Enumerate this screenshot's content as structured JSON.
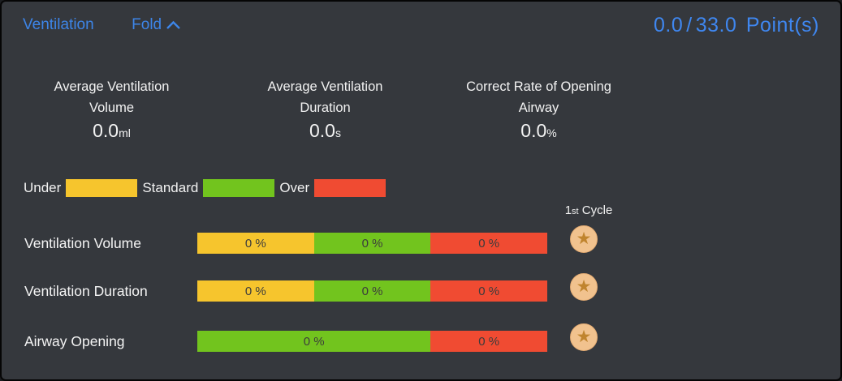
{
  "panel": {
    "title": "Ventilation",
    "fold_label": "Fold",
    "score": {
      "current": "0.0",
      "separator": "/",
      "total": "33.0",
      "unit": "Point(s)"
    }
  },
  "stats": [
    {
      "label_line1": "Average Ventilation",
      "label_line2": "Volume",
      "value": "0.0",
      "unit": "ml"
    },
    {
      "label_line1": "Average Ventilation",
      "label_line2": "Duration",
      "value": "0.0",
      "unit": "s"
    },
    {
      "label_line1": "Correct Rate of Opening",
      "label_line2": "Airway",
      "value": "0.0",
      "unit": "%"
    }
  ],
  "legend": [
    {
      "label": "Under",
      "key": "under",
      "color": "#f6c52d"
    },
    {
      "label": "Standard",
      "key": "standard",
      "color": "#72c41e"
    },
    {
      "label": "Over",
      "key": "over",
      "color": "#f04b32"
    }
  ],
  "cycle_header": {
    "number": "1",
    "ordinal": "st",
    "word": "Cycle"
  },
  "rows": [
    {
      "label": "Ventilation Volume",
      "segments": [
        {
          "category": "under",
          "value": "0 %",
          "weight": 1
        },
        {
          "category": "standard",
          "value": "0 %",
          "weight": 1
        },
        {
          "category": "over",
          "value": "0 %",
          "weight": 1
        }
      ],
      "cycle_rating": "star"
    },
    {
      "label": "Ventilation Duration",
      "segments": [
        {
          "category": "under",
          "value": "0 %",
          "weight": 1
        },
        {
          "category": "standard",
          "value": "0 %",
          "weight": 1
        },
        {
          "category": "over",
          "value": "0 %",
          "weight": 1
        }
      ],
      "cycle_rating": "star"
    },
    {
      "label": "Airway Opening",
      "segments": [
        {
          "category": "standard",
          "value": "0 %",
          "weight": 2
        },
        {
          "category": "over",
          "value": "0 %",
          "weight": 1
        }
      ],
      "cycle_rating": "star"
    }
  ],
  "colors": {
    "under": "#f6c52d",
    "standard": "#72c41e",
    "over": "#f04b32",
    "accent_blue": "#3d85e8",
    "panel_background": "#35383d",
    "badge_background": "#f1c28e",
    "badge_star": "#c0842e",
    "star_symbol": "★"
  }
}
